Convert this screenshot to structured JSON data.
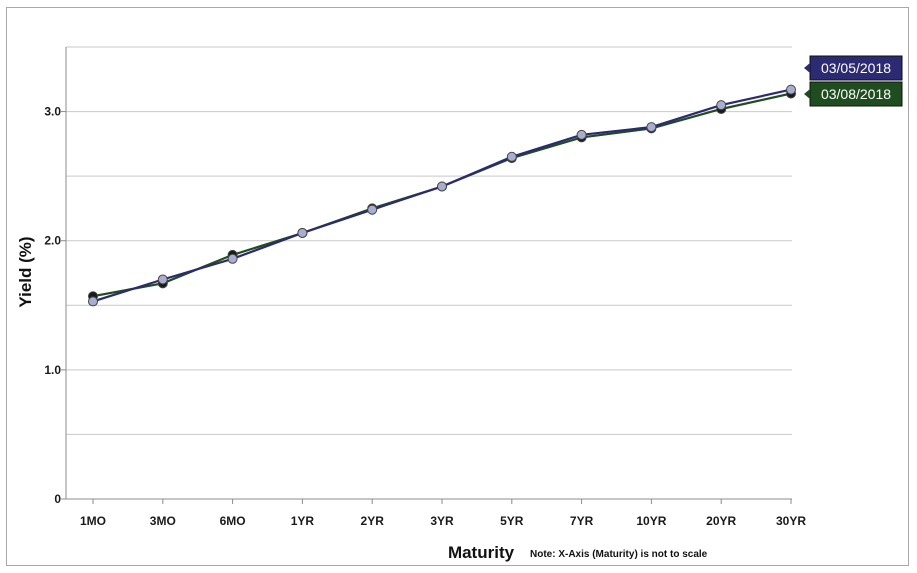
{
  "chart_data": {
    "type": "line",
    "title": "",
    "xlabel": "Maturity",
    "ylabel": "Yield (%)",
    "note": "Note: X-Axis (Maturity) is not to scale",
    "categories": [
      "1MO",
      "3MO",
      "6MO",
      "1YR",
      "2YR",
      "3YR",
      "5YR",
      "7YR",
      "10YR",
      "20YR",
      "30YR"
    ],
    "y_ticks": [
      {
        "value": 0,
        "label": "0"
      },
      {
        "value": 1,
        "label": "1.0"
      },
      {
        "value": 2,
        "label": "2.0"
      },
      {
        "value": 3,
        "label": "3.0"
      }
    ],
    "ylim": [
      0,
      3.5
    ],
    "grid": true,
    "series": [
      {
        "name": "03/08/2018",
        "color": "#1f4d1f",
        "marker_color": "#1a1a1a",
        "values": [
          1.57,
          1.67,
          1.89,
          2.06,
          2.25,
          2.42,
          2.64,
          2.8,
          2.87,
          3.02,
          3.14
        ]
      },
      {
        "name": "03/05/2018",
        "color": "#2b2a72",
        "marker_color": "#a9aed0",
        "values": [
          1.53,
          1.7,
          1.86,
          2.06,
          2.24,
          2.42,
          2.65,
          2.82,
          2.88,
          3.05,
          3.17
        ]
      }
    ]
  }
}
